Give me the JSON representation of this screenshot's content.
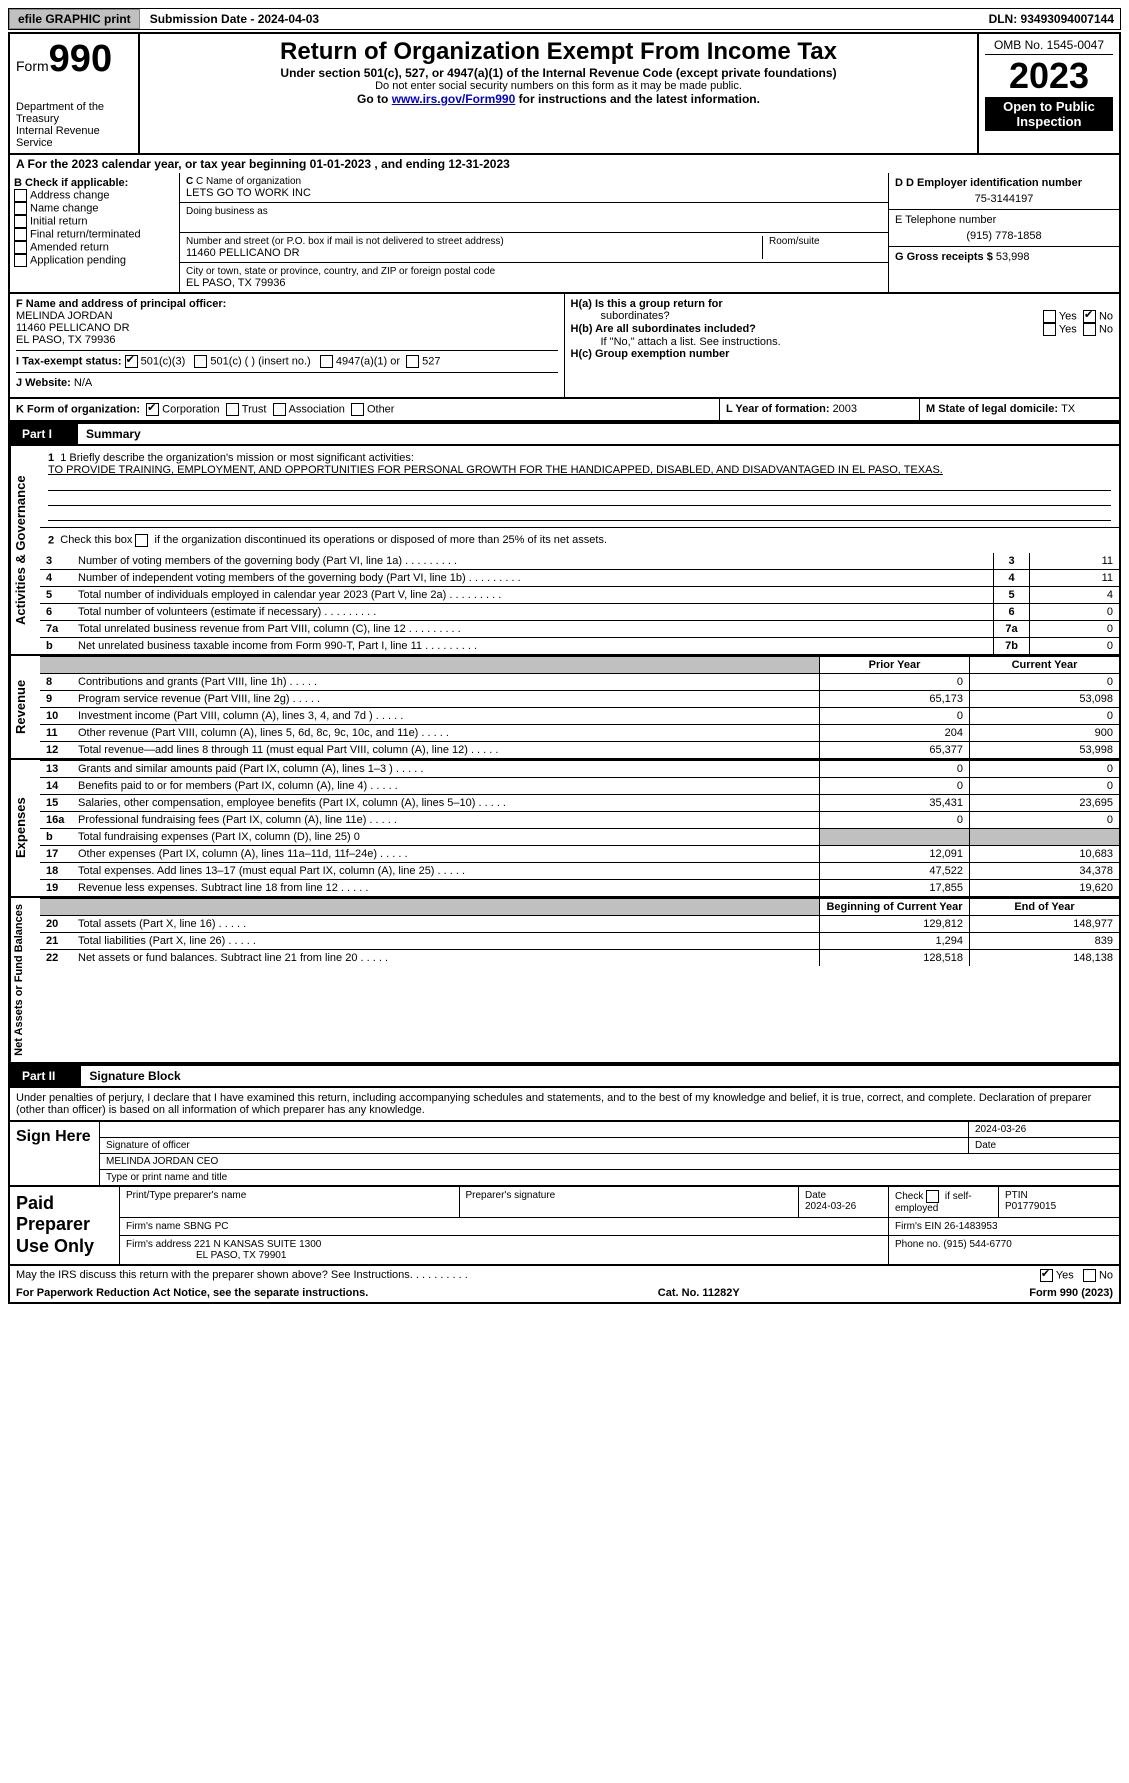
{
  "topbar": {
    "efile": "efile GRAPHIC print",
    "submission": "Submission Date - 2024-04-03",
    "dln": "DLN: 93493094007144"
  },
  "header": {
    "form_label": "Form",
    "form_num": "990",
    "dept": "Department of the Treasury\nInternal Revenue Service",
    "title": "Return of Organization Exempt From Income Tax",
    "subtitle": "Under section 501(c), 527, or 4947(a)(1) of the Internal Revenue Code (except private foundations)",
    "warn": "Do not enter social security numbers on this form as it may be made public.",
    "goto_pre": "Go to ",
    "goto_link": "www.irs.gov/Form990",
    "goto_post": " for instructions and the latest information.",
    "omb": "OMB No. 1545-0047",
    "year": "2023",
    "open": "Open to Public Inspection"
  },
  "rowA": {
    "pre": "A For the 2023 calendar year, or tax year beginning ",
    "begin": "01-01-2023",
    "mid": " , and ending ",
    "end": "12-31-2023"
  },
  "boxB": {
    "label": "B Check if applicable:",
    "items": [
      "Address change",
      "Name change",
      "Initial return",
      "Final return/terminated",
      "Amended return",
      "Application pending"
    ]
  },
  "boxC": {
    "name_label": "C Name of organization",
    "name": "LETS GO TO WORK INC",
    "dba_label": "Doing business as",
    "addr_label": "Number and street (or P.O. box if mail is not delivered to street address)",
    "room_label": "Room/suite",
    "addr": "11460 PELLICANO DR",
    "city_label": "City or town, state or province, country, and ZIP or foreign postal code",
    "city": "EL PASO, TX  79936"
  },
  "boxD": {
    "ein_label": "D Employer identification number",
    "ein": "75-3144197",
    "tel_label": "E Telephone number",
    "tel": "(915) 778-1858",
    "gross_label": "G Gross receipts $ ",
    "gross": "53,998"
  },
  "rowF": {
    "label": "F  Name and address of principal officer:",
    "line1": "MELINDA JORDAN",
    "line2": "11460 PELLICANO DR",
    "line3": "EL PASO, TX  79936"
  },
  "rowH": {
    "a": "H(a)  Is this a group return for",
    "a2": "subordinates?",
    "b": "H(b)  Are all subordinates included?",
    "bnote": "If \"No,\" attach a list. See instructions.",
    "c": "H(c)  Group exemption number ",
    "yes": "Yes",
    "no": "No"
  },
  "rowI": {
    "label": "I  Tax-exempt status:",
    "o1": "501(c)(3)",
    "o2": "501(c) (  ) (insert no.)",
    "o3": "4947(a)(1) or",
    "o4": "527"
  },
  "rowJ": {
    "label": "J  Website: ",
    "val": "N/A"
  },
  "rowK": {
    "label": "K Form of organization:",
    "o1": "Corporation",
    "o2": "Trust",
    "o3": "Association",
    "o4": "Other"
  },
  "rowL": {
    "label": "L Year of formation: ",
    "val": "2003"
  },
  "rowM": {
    "label": "M State of legal domicile: ",
    "val": "TX"
  },
  "part1": {
    "num": "Part I",
    "title": "Summary"
  },
  "governance": {
    "label": "Activities & Governance",
    "l1_label": "1  Briefly describe the organization's mission or most significant activities:",
    "l1_text": "TO PROVIDE TRAINING, EMPLOYMENT, AND OPPORTUNITIES FOR PERSONAL GROWTH FOR THE HANDICAPPED, DISABLED, AND DISADVANTAGED IN EL PASO, TEXAS.",
    "l2": "Check this box      if the organization discontinued its operations or disposed of more than 25% of its net assets.",
    "rows": [
      {
        "n": "3",
        "d": "Number of voting members of the governing body (Part VI, line 1a)",
        "box": "3",
        "v": "11"
      },
      {
        "n": "4",
        "d": "Number of independent voting members of the governing body (Part VI, line 1b)",
        "box": "4",
        "v": "11"
      },
      {
        "n": "5",
        "d": "Total number of individuals employed in calendar year 2023 (Part V, line 2a)",
        "box": "5",
        "v": "4"
      },
      {
        "n": "6",
        "d": "Total number of volunteers (estimate if necessary)",
        "box": "6",
        "v": "0"
      },
      {
        "n": "7a",
        "d": "Total unrelated business revenue from Part VIII, column (C), line 12",
        "box": "7a",
        "v": "0"
      },
      {
        "n": "b",
        "d": "Net unrelated business taxable income from Form 990-T, Part I, line 11",
        "box": "7b",
        "v": "0"
      }
    ]
  },
  "revenue": {
    "label": "Revenue",
    "hprior": "Prior Year",
    "hcurrent": "Current Year",
    "rows": [
      {
        "n": "8",
        "d": "Contributions and grants (Part VIII, line 1h)",
        "p": "0",
        "c": "0"
      },
      {
        "n": "9",
        "d": "Program service revenue (Part VIII, line 2g)",
        "p": "65,173",
        "c": "53,098"
      },
      {
        "n": "10",
        "d": "Investment income (Part VIII, column (A), lines 3, 4, and 7d )",
        "p": "0",
        "c": "0"
      },
      {
        "n": "11",
        "d": "Other revenue (Part VIII, column (A), lines 5, 6d, 8c, 9c, 10c, and 11e)",
        "p": "204",
        "c": "900"
      },
      {
        "n": "12",
        "d": "Total revenue—add lines 8 through 11 (must equal Part VIII, column (A), line 12)",
        "p": "65,377",
        "c": "53,998"
      }
    ]
  },
  "expenses": {
    "label": "Expenses",
    "rows": [
      {
        "n": "13",
        "d": "Grants and similar amounts paid (Part IX, column (A), lines 1–3 )",
        "p": "0",
        "c": "0"
      },
      {
        "n": "14",
        "d": "Benefits paid to or for members (Part IX, column (A), line 4)",
        "p": "0",
        "c": "0"
      },
      {
        "n": "15",
        "d": "Salaries, other compensation, employee benefits (Part IX, column (A), lines 5–10)",
        "p": "35,431",
        "c": "23,695"
      },
      {
        "n": "16a",
        "d": "Professional fundraising fees (Part IX, column (A), line 11e)",
        "p": "0",
        "c": "0"
      },
      {
        "n": "b",
        "d": "Total fundraising expenses (Part IX, column (D), line 25) 0",
        "p": "",
        "c": "",
        "grey": true
      },
      {
        "n": "17",
        "d": "Other expenses (Part IX, column (A), lines 11a–11d, 11f–24e)",
        "p": "12,091",
        "c": "10,683"
      },
      {
        "n": "18",
        "d": "Total expenses. Add lines 13–17 (must equal Part IX, column (A), line 25)",
        "p": "47,522",
        "c": "34,378"
      },
      {
        "n": "19",
        "d": "Revenue less expenses. Subtract line 18 from line 12",
        "p": "17,855",
        "c": "19,620"
      }
    ]
  },
  "netassets": {
    "label": "Net Assets or Fund Balances",
    "hbegin": "Beginning of Current Year",
    "hend": "End of Year",
    "rows": [
      {
        "n": "20",
        "d": "Total assets (Part X, line 16)",
        "p": "129,812",
        "c": "148,977"
      },
      {
        "n": "21",
        "d": "Total liabilities (Part X, line 26)",
        "p": "1,294",
        "c": "839"
      },
      {
        "n": "22",
        "d": "Net assets or fund balances. Subtract line 21 from line 20",
        "p": "128,518",
        "c": "148,138"
      }
    ]
  },
  "part2": {
    "num": "Part II",
    "title": "Signature Block"
  },
  "sig": {
    "decl": "Under penalties of perjury, I declare that I have examined this return, including accompanying schedules and statements, and to the best of my knowledge and belief, it is true, correct, and complete. Declaration of preparer (other than officer) is based on all information of which preparer has any knowledge.",
    "sign_here": "Sign Here",
    "sigoff_label": "Signature of officer",
    "date_label": "Date",
    "date": "2024-03-26",
    "name": "MELINDA JORDAN  CEO",
    "name_label": "Type or print name and title"
  },
  "paid": {
    "label": "Paid Preparer Use Only",
    "h1": "Print/Type preparer's name",
    "h2": "Preparer's signature",
    "h3": "Date",
    "h3v": "2024-03-26",
    "h4a": "Check",
    "h4b": "if self-employed",
    "h5": "PTIN",
    "h5v": "P01779015",
    "firm_label": "Firm's name     ",
    "firm": "SBNG PC",
    "ein_label": "Firm's EIN  ",
    "ein": "26-1483953",
    "addr_label": "Firm's address ",
    "addr1": "221 N KANSAS SUITE 1300",
    "addr2": "EL PASO, TX  79901",
    "phone_label": "Phone no. ",
    "phone": "(915) 544-6770"
  },
  "discuss": {
    "text": "May the IRS discuss this return with the preparer shown above? See Instructions.",
    "yes": "Yes",
    "no": "No"
  },
  "footer": {
    "left": "For Paperwork Reduction Act Notice, see the separate instructions.",
    "mid": "Cat. No. 11282Y",
    "right": "Form 990 (2023)"
  }
}
